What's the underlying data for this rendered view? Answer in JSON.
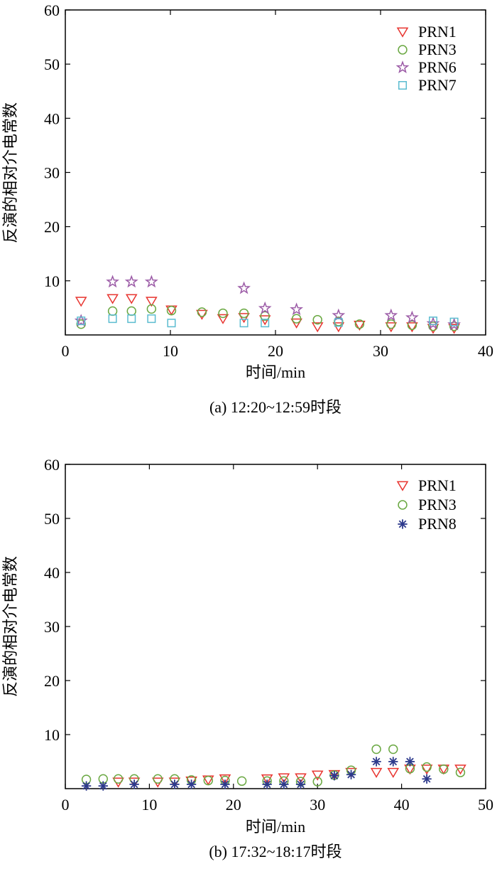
{
  "chart_data": [
    {
      "type": "scatter",
      "caption": "(a) 12:20~12:59时段",
      "xlabel": "时间/min",
      "ylabel": "反演的相对介电常数",
      "xlim": [
        0,
        40
      ],
      "ylim": [
        0,
        60
      ],
      "xticks": [
        "0",
        "10",
        "20",
        "30",
        "40"
      ],
      "yticks": [
        "10",
        "20",
        "30",
        "40",
        "50",
        "60"
      ],
      "grid": false,
      "legend_position": "top-right",
      "series": [
        {
          "name": "PRN1",
          "marker": "triangle-down",
          "color": "#e8342f",
          "x": [
            1.5,
            4.5,
            6.3,
            8.2,
            10.1,
            13,
            15,
            17,
            19,
            22,
            24,
            26,
            28,
            31,
            33,
            35,
            37
          ],
          "y": [
            6.2,
            6.7,
            6.7,
            6.2,
            4.6,
            3.8,
            3.0,
            3.2,
            2.8,
            2.2,
            1.5,
            1.5,
            1.8,
            1.5,
            1.5,
            1.2,
            1.2
          ]
        },
        {
          "name": "PRN3",
          "marker": "circle",
          "color": "#6aa842",
          "x": [
            1.5,
            4.5,
            6.3,
            8.2,
            10.1,
            13,
            15,
            17,
            19,
            22,
            24,
            26,
            28,
            31,
            33,
            35,
            37
          ],
          "y": [
            2.0,
            4.4,
            4.4,
            4.8,
            4.5,
            4.2,
            4.0,
            4.0,
            3.5,
            3.0,
            2.8,
            2.5,
            2.0,
            2.0,
            1.8,
            1.6,
            1.6
          ]
        },
        {
          "name": "PRN6",
          "marker": "star",
          "color": "#9b5aa6",
          "x": [
            1.5,
            4.5,
            6.3,
            8.2,
            17,
            19,
            22,
            26,
            31,
            33,
            35,
            37
          ],
          "y": [
            2.6,
            9.8,
            9.8,
            9.8,
            8.6,
            4.9,
            4.7,
            3.6,
            3.6,
            3.2,
            2.1,
            1.9
          ]
        },
        {
          "name": "PRN7",
          "marker": "square",
          "color": "#5bbcd0",
          "x": [
            1.5,
            4.5,
            6.3,
            8.2,
            10.1,
            17,
            19,
            26,
            35,
            37
          ],
          "y": [
            2.6,
            3.0,
            3.0,
            3.0,
            2.2,
            2.2,
            2.2,
            2.3,
            2.6,
            2.4
          ]
        }
      ]
    },
    {
      "type": "scatter",
      "caption": "(b) 17:32~18:17时段",
      "xlabel": "时间/min",
      "ylabel": "反演的相对介电常数",
      "xlim": [
        0,
        50
      ],
      "ylim": [
        0,
        60
      ],
      "xticks": [
        "0",
        "10",
        "20",
        "30",
        "40",
        "50"
      ],
      "yticks": [
        "10",
        "20",
        "30",
        "40",
        "50",
        "60"
      ],
      "grid": false,
      "legend_position": "top-right",
      "series": [
        {
          "name": "PRN1",
          "marker": "triangle-down",
          "color": "#e8342f",
          "x": [
            6.3,
            8.2,
            11,
            13,
            15,
            17,
            19,
            24,
            26,
            28,
            30,
            32,
            34,
            37,
            39,
            41,
            43,
            45,
            47
          ],
          "y": [
            1.2,
            1.2,
            1.2,
            1.2,
            1.4,
            1.6,
            1.8,
            1.8,
            2.0,
            2.0,
            2.5,
            2.6,
            3.0,
            3.0,
            3.0,
            3.6,
            3.6,
            3.6,
            3.6
          ]
        },
        {
          "name": "PRN3",
          "marker": "circle",
          "color": "#6aa842",
          "x": [
            2.5,
            4.5,
            6.3,
            8.2,
            11,
            13,
            15,
            17,
            19,
            21,
            24,
            26,
            28,
            30,
            32,
            34,
            37,
            39,
            41,
            43,
            45,
            47
          ],
          "y": [
            1.7,
            1.8,
            1.8,
            1.8,
            1.8,
            1.8,
            1.6,
            1.5,
            1.5,
            1.4,
            1.4,
            1.4,
            1.3,
            1.3,
            2.5,
            3.4,
            7.3,
            7.3,
            3.7,
            4.0,
            3.6,
            3.0
          ]
        },
        {
          "name": "PRN8",
          "marker": "asterisk",
          "color": "#2d3a8c",
          "x": [
            2.5,
            4.5,
            8.2,
            13,
            15,
            19,
            24,
            26,
            28,
            32,
            34,
            37,
            39,
            41,
            43
          ],
          "y": [
            0.5,
            0.5,
            0.8,
            0.8,
            0.8,
            0.8,
            0.8,
            0.8,
            0.8,
            2.4,
            2.6,
            5.0,
            5.0,
            5.0,
            1.8
          ]
        }
      ]
    }
  ]
}
